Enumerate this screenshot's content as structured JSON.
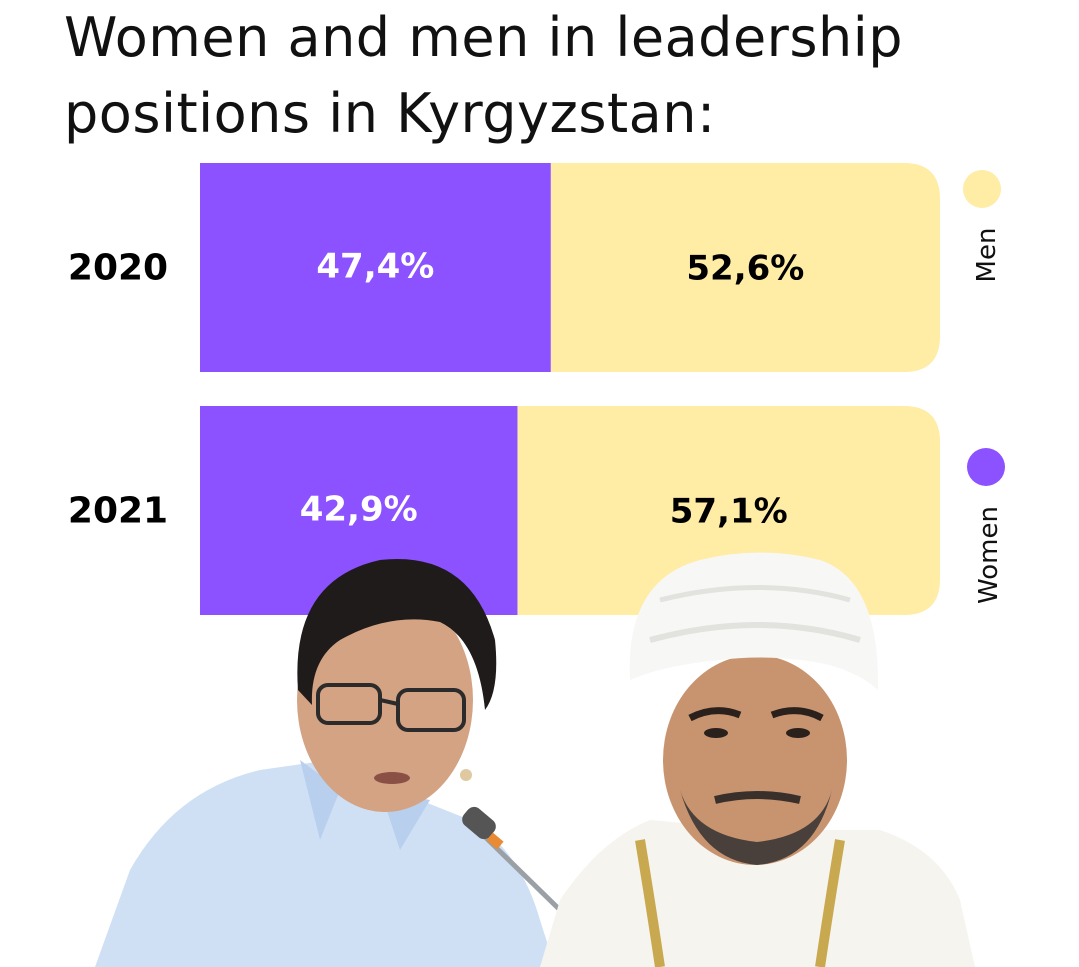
{
  "chart_data": {
    "type": "bar",
    "title": "Women and men in leadership positions in Kyrgyzstan:",
    "categories": [
      "2020",
      "2021"
    ],
    "series": [
      {
        "name": "Women",
        "values": [
          47.4,
          42.9
        ],
        "labels": [
          "47,4%",
          "42,9%"
        ],
        "color": "#8c52ff"
      },
      {
        "name": "Men",
        "values": [
          52.6,
          57.1
        ],
        "labels": [
          "52,6%",
          "57,1%"
        ],
        "color": "#ffeca5"
      }
    ],
    "stacked": true,
    "orientation": "horizontal",
    "xlim": [
      0,
      100
    ],
    "legend": "right",
    "grid": false
  },
  "colors": {
    "women": "#8c52ff",
    "men": "#ffeca5",
    "women_text": "#ffffff",
    "men_text": "#000000"
  },
  "photos": {
    "left": "woman-photo",
    "right": "imam-photo"
  }
}
